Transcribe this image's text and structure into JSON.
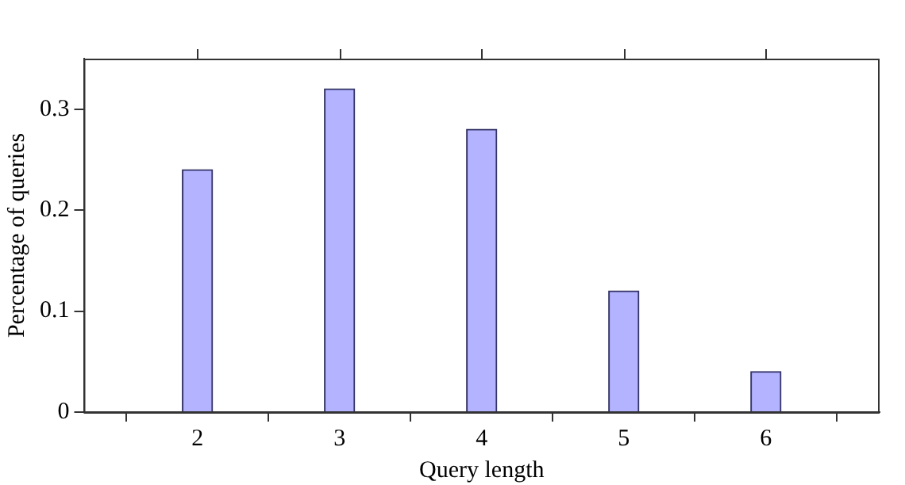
{
  "chart_data": {
    "type": "bar",
    "xlabel": "Query length",
    "ylabel": "Percentage of queries",
    "x": [
      2,
      3,
      4,
      5,
      6
    ],
    "values": [
      0.24,
      0.32,
      0.28,
      0.12,
      0.04
    ],
    "color": "#b3b3ff",
    "xlim": [
      1.2,
      6.8
    ],
    "xticks": [
      2,
      3,
      4,
      5,
      6
    ],
    "ylim": [
      0,
      0.35
    ],
    "yticks": [
      0,
      0.1,
      0.2,
      0.3
    ],
    "grid": false,
    "legend": false
  }
}
